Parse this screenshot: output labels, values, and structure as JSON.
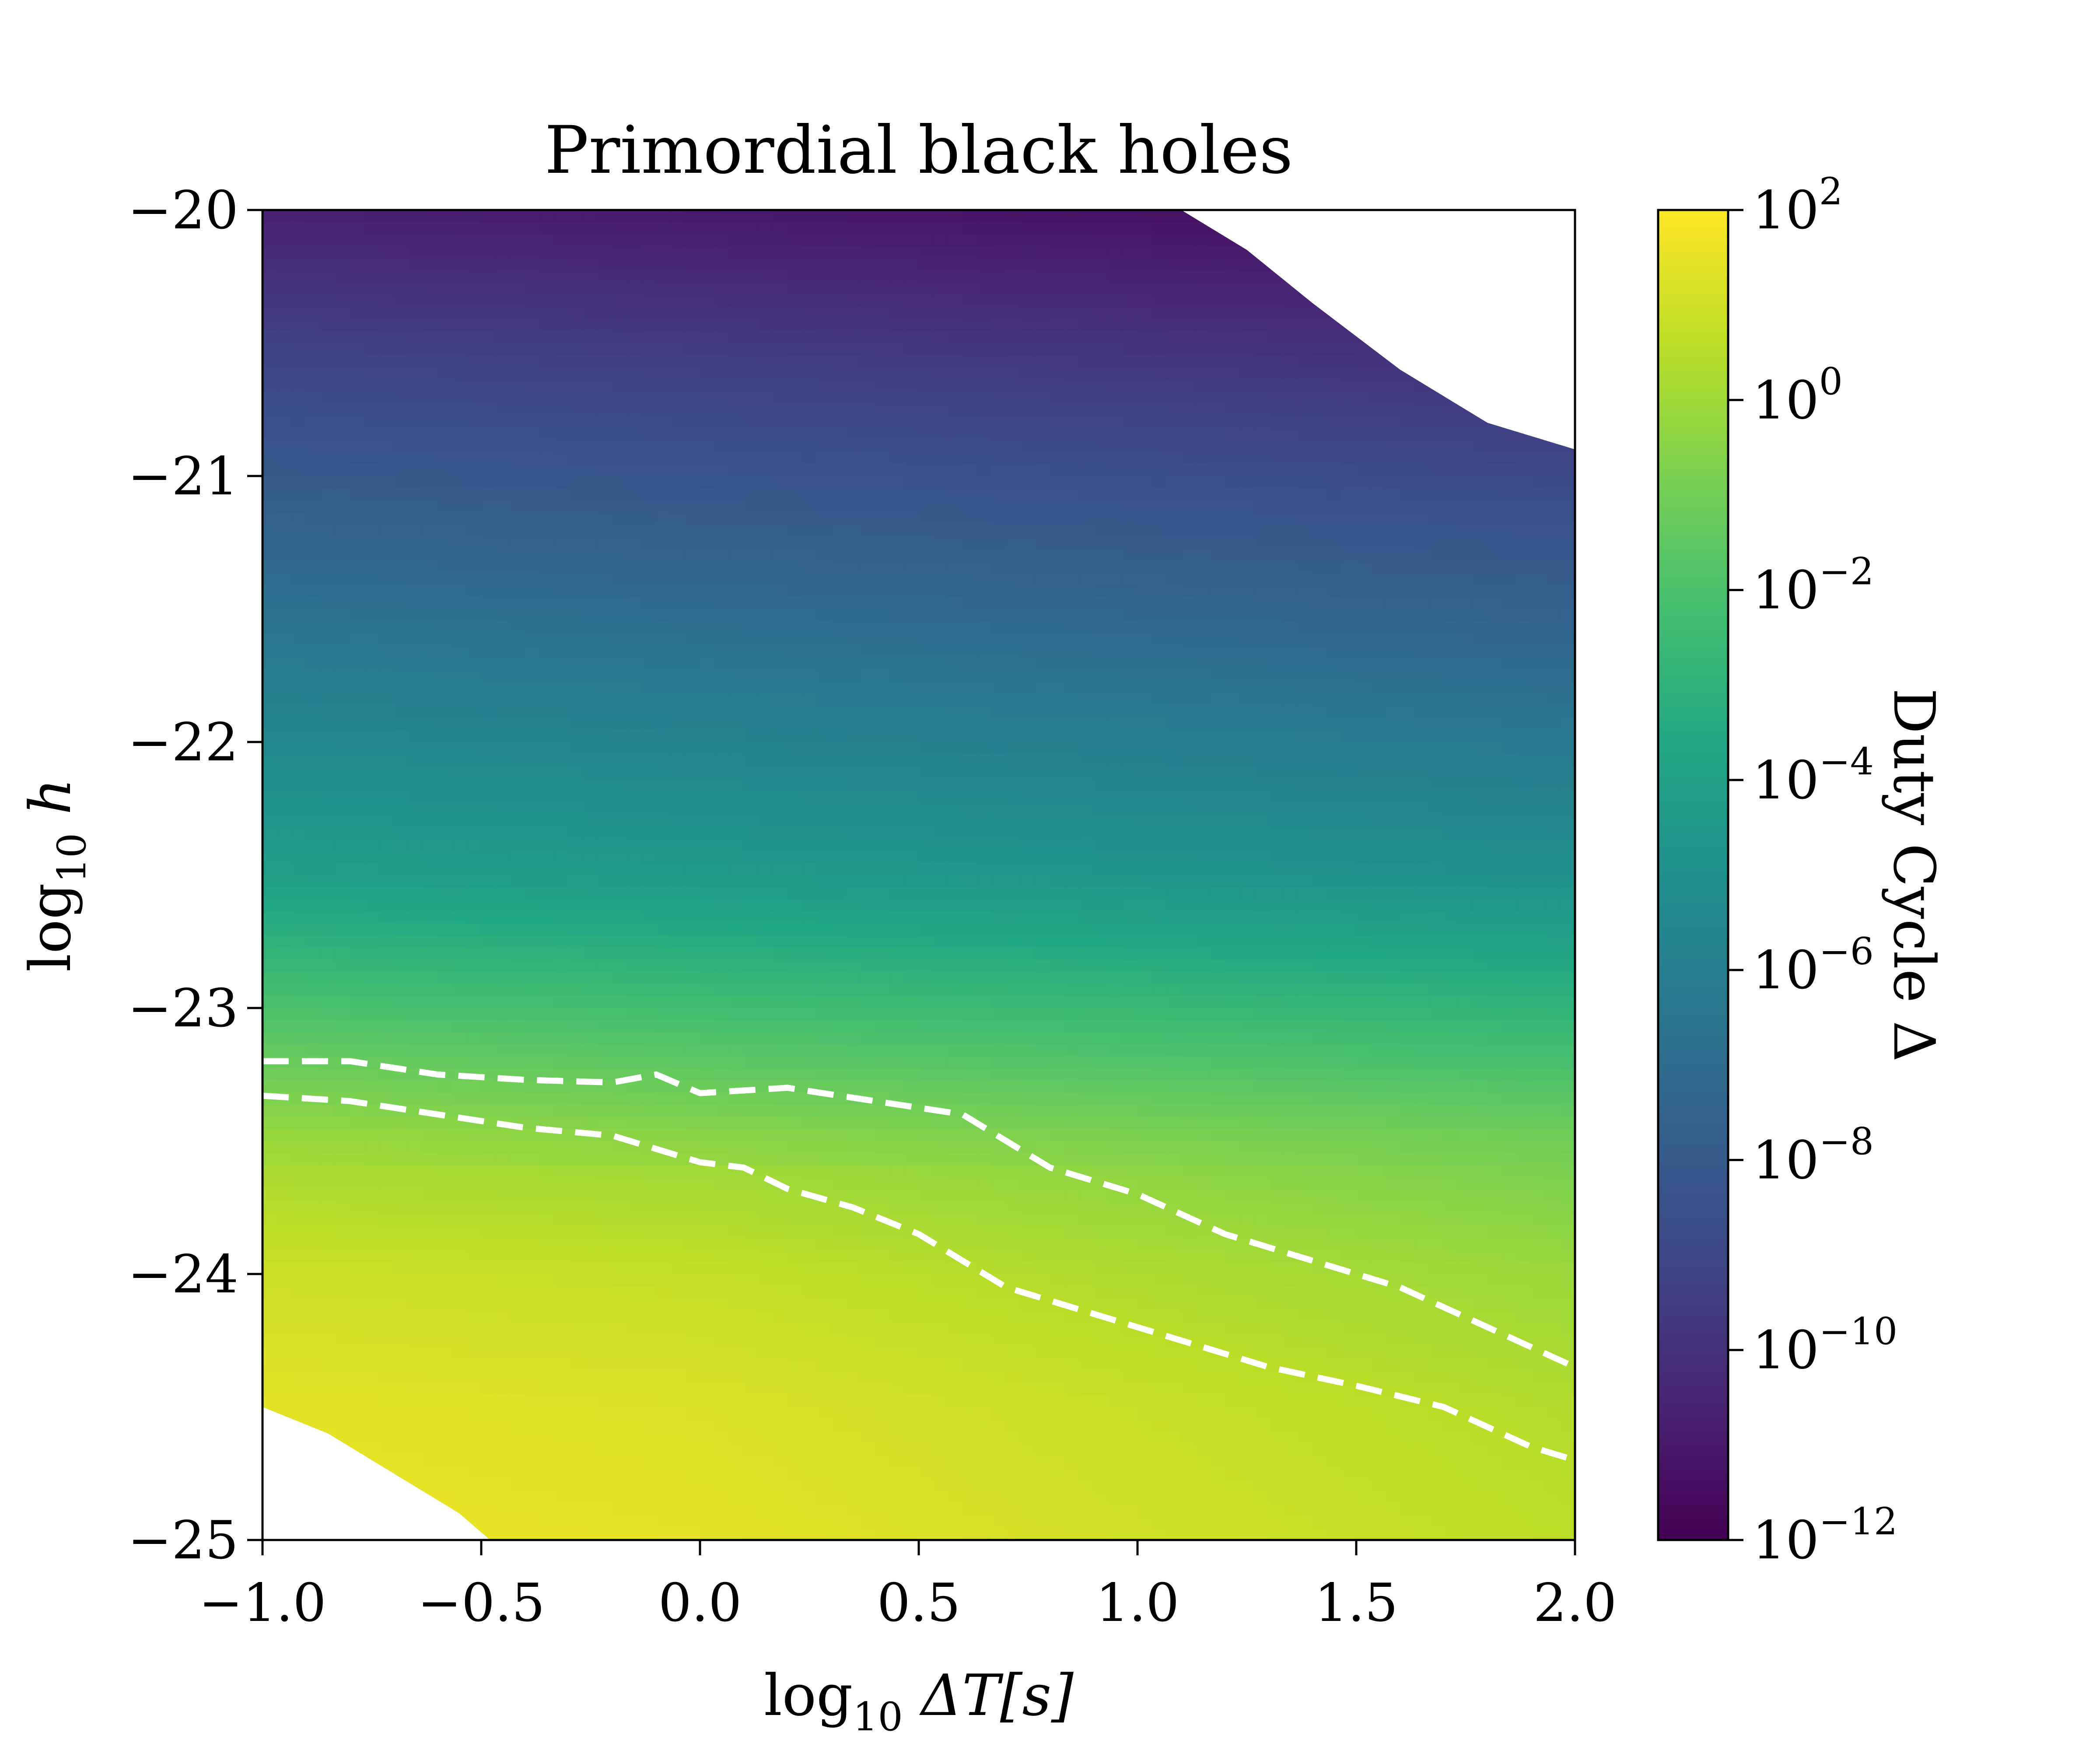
{
  "chart_data": {
    "type": "heatmap",
    "title": "Primordial black holes",
    "xlabel": {
      "main": "log",
      "sub": "10",
      "rest": " ΔT[s]"
    },
    "ylabel": {
      "main": "log",
      "sub": "10",
      "rest": " h"
    },
    "xlim": [
      -1.0,
      2.0
    ],
    "ylim": [
      -25,
      -20
    ],
    "x_ticks": [
      {
        "value": -1.0,
        "label": "−1.0"
      },
      {
        "value": -0.5,
        "label": "−0.5"
      },
      {
        "value": 0.0,
        "label": "0.0"
      },
      {
        "value": 0.5,
        "label": "0.5"
      },
      {
        "value": 1.0,
        "label": "1.0"
      },
      {
        "value": 1.5,
        "label": "1.5"
      },
      {
        "value": 2.0,
        "label": "2.0"
      }
    ],
    "y_ticks": [
      {
        "value": -20,
        "label": "−20"
      },
      {
        "value": -21,
        "label": "−21"
      },
      {
        "value": -22,
        "label": "−22"
      },
      {
        "value": -23,
        "label": "−23"
      },
      {
        "value": -24,
        "label": "−24"
      },
      {
        "value": -25,
        "label": "−25"
      }
    ],
    "colorbar": {
      "label": "Duty Cycle Δ",
      "scale": "log",
      "colormap": "viridis",
      "log10_range": [
        -12,
        2
      ],
      "ticks": [
        {
          "value": 2,
          "base": "10",
          "exp": "2"
        },
        {
          "value": 0,
          "base": "10",
          "exp": "0"
        },
        {
          "value": -2,
          "base": "10",
          "exp": "−2"
        },
        {
          "value": -4,
          "base": "10",
          "exp": "−4"
        },
        {
          "value": -6,
          "base": "10",
          "exp": "−6"
        },
        {
          "value": -8,
          "base": "10",
          "exp": "−8"
        },
        {
          "value": -10,
          "base": "10",
          "exp": "−10"
        },
        {
          "value": -12,
          "base": "10",
          "exp": "−12"
        }
      ]
    },
    "heatmap_anchors": {
      "note_units": "value = log10(Duty Cycle) at log10 h",
      "by_log10h_at_x0": [
        {
          "y": -20.0,
          "value": -11.0
        },
        {
          "y": -20.5,
          "value": -9.6
        },
        {
          "y": -21.0,
          "value": -8.3
        },
        {
          "y": -21.5,
          "value": -7.0
        },
        {
          "y": -22.0,
          "value": -5.7
        },
        {
          "y": -22.5,
          "value": -4.4
        },
        {
          "y": -23.0,
          "value": -2.3
        },
        {
          "y": -23.5,
          "value": -0.4
        },
        {
          "y": -24.0,
          "value": 0.5
        },
        {
          "y": -24.5,
          "value": 1.0
        },
        {
          "y": -25.0,
          "value": 1.2
        }
      ]
    },
    "masked_regions": [
      {
        "name": "upper-right",
        "vertices": [
          [
            1.1,
            -20.0
          ],
          [
            2.0,
            -20.0
          ],
          [
            2.0,
            -20.9
          ],
          [
            1.8,
            -20.8
          ],
          [
            1.6,
            -20.6
          ],
          [
            1.4,
            -20.35
          ],
          [
            1.25,
            -20.15
          ]
        ]
      },
      {
        "name": "lower-left",
        "vertices": [
          [
            -1.0,
            -25.0
          ],
          [
            -1.0,
            -24.5
          ],
          [
            -0.85,
            -24.6
          ],
          [
            -0.7,
            -24.75
          ],
          [
            -0.55,
            -24.9
          ],
          [
            -0.48,
            -25.0
          ]
        ]
      }
    ],
    "contours": [
      {
        "name": "contour-upper",
        "style": "dashed-white",
        "points": [
          [
            -1.0,
            -23.2
          ],
          [
            -0.8,
            -23.2
          ],
          [
            -0.6,
            -23.25
          ],
          [
            -0.4,
            -23.27
          ],
          [
            -0.2,
            -23.28
          ],
          [
            -0.1,
            -23.25
          ],
          [
            0.0,
            -23.32
          ],
          [
            0.2,
            -23.3
          ],
          [
            0.4,
            -23.35
          ],
          [
            0.6,
            -23.4
          ],
          [
            0.8,
            -23.6
          ],
          [
            1.0,
            -23.7
          ],
          [
            1.2,
            -23.85
          ],
          [
            1.4,
            -23.95
          ],
          [
            1.6,
            -24.05
          ],
          [
            1.8,
            -24.2
          ],
          [
            2.0,
            -24.35
          ]
        ]
      },
      {
        "name": "contour-lower",
        "style": "dashed-white",
        "points": [
          [
            -1.0,
            -23.33
          ],
          [
            -0.8,
            -23.35
          ],
          [
            -0.6,
            -23.4
          ],
          [
            -0.4,
            -23.45
          ],
          [
            -0.2,
            -23.48
          ],
          [
            0.0,
            -23.58
          ],
          [
            0.1,
            -23.6
          ],
          [
            0.2,
            -23.68
          ],
          [
            0.35,
            -23.75
          ],
          [
            0.5,
            -23.85
          ],
          [
            0.7,
            -24.05
          ],
          [
            0.9,
            -24.15
          ],
          [
            1.1,
            -24.25
          ],
          [
            1.3,
            -24.35
          ],
          [
            1.5,
            -24.42
          ],
          [
            1.7,
            -24.5
          ],
          [
            1.9,
            -24.65
          ],
          [
            2.0,
            -24.7
          ]
        ]
      }
    ]
  }
}
